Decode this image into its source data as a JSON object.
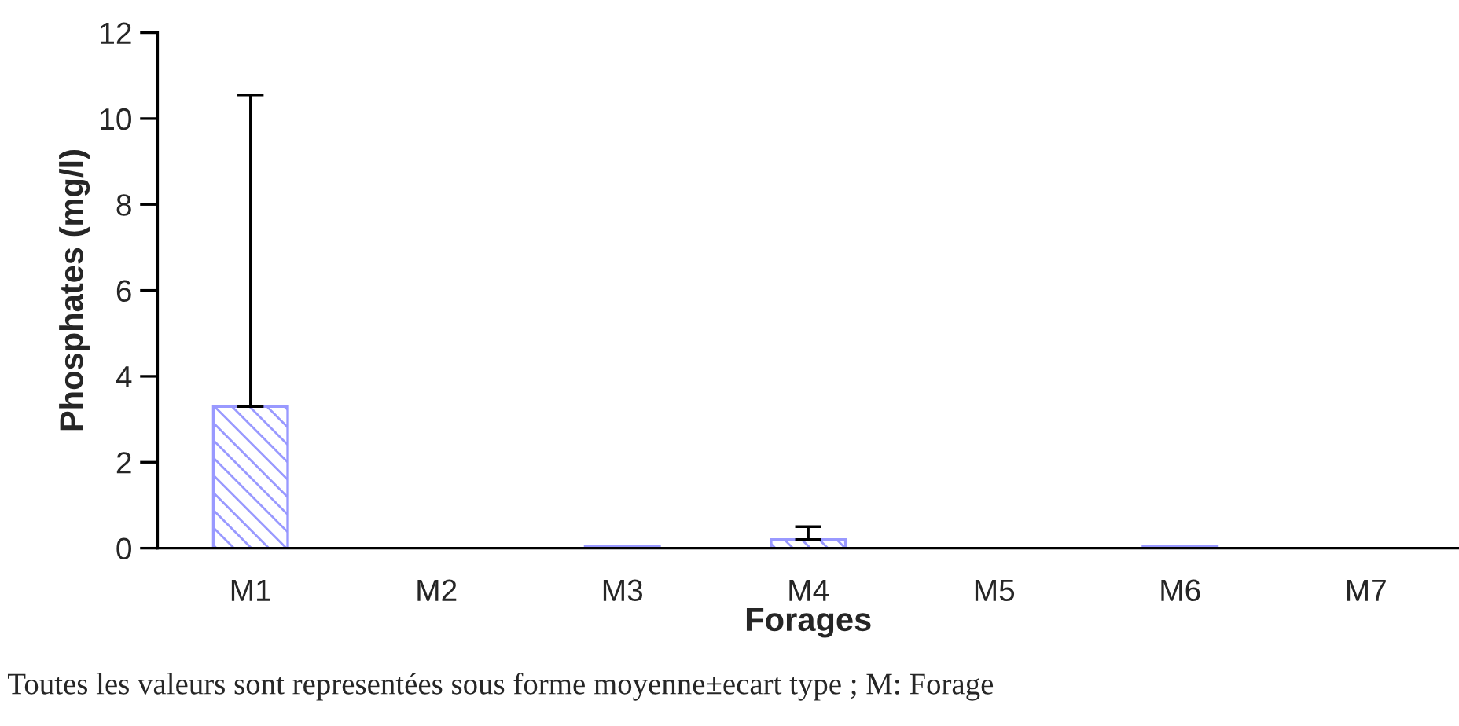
{
  "chart_data": {
    "type": "bar",
    "xlabel": "Forages",
    "ylabel": "Phosphates (mg/l)",
    "categories": [
      "M1",
      "M2",
      "M3",
      "M4",
      "M5",
      "M6",
      "M7"
    ],
    "values": [
      3.3,
      0,
      0.05,
      0.2,
      0,
      0.05,
      0
    ],
    "errors": [
      [
        3.3,
        10.55
      ],
      null,
      null,
      [
        0.2,
        0.5
      ],
      null,
      null,
      null
    ],
    "color": "#9999ff",
    "ylim": [
      0,
      12
    ],
    "yticks": [
      0,
      2,
      4,
      6,
      8,
      10,
      12
    ],
    "grid": false,
    "legend": false,
    "annotations": [
      "Toutes les valeurs sont representées sous forme moyenne±ecart type ; M: Forage"
    ]
  }
}
